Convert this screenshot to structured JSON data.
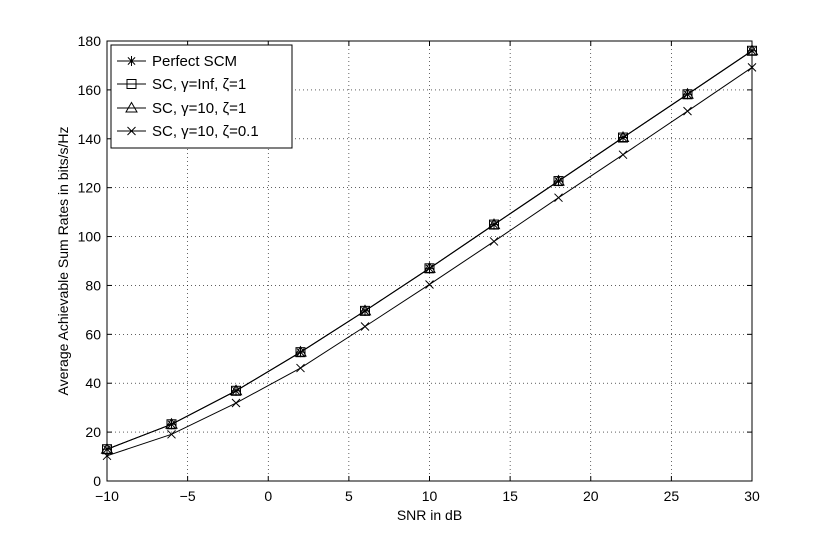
{
  "chart_data": {
    "type": "line",
    "title": "",
    "xlabel": "SNR in dB",
    "ylabel": "Average Achievable Sum Rates in bits/s/Hz",
    "xlim": [
      -10,
      30
    ],
    "ylim": [
      0,
      180
    ],
    "xticks": [
      -10,
      -5,
      0,
      5,
      10,
      15,
      20,
      25,
      30
    ],
    "xtick_labels": [
      "−10",
      "−5",
      "0",
      "5",
      "10",
      "15",
      "20",
      "25",
      "30"
    ],
    "yticks": [
      0,
      20,
      40,
      60,
      80,
      100,
      120,
      140,
      160,
      180
    ],
    "ytick_labels": [
      "0",
      "20",
      "40",
      "60",
      "80",
      "100",
      "120",
      "140",
      "160",
      "180"
    ],
    "grid": true,
    "legend_position": "top-left",
    "x": [
      -10,
      -6,
      -2,
      2,
      6,
      10,
      14,
      18,
      22,
      26,
      30
    ],
    "series": [
      {
        "name": "Perfect SCM",
        "marker": "asterisk",
        "values": [
          13,
          23.2,
          36.9,
          52.7,
          69.6,
          87.0,
          104.9,
          122.7,
          140.5,
          158.2,
          176.0
        ]
      },
      {
        "name": "SC, γ=Inf, ζ=1",
        "marker": "square",
        "values": [
          13,
          23.2,
          36.9,
          52.7,
          69.6,
          87.0,
          104.9,
          122.7,
          140.5,
          158.2,
          176.0
        ]
      },
      {
        "name": "SC, γ=10, ζ=1",
        "marker": "triangle",
        "values": [
          13,
          23.2,
          36.9,
          52.7,
          69.6,
          87.0,
          104.9,
          122.7,
          140.5,
          158.2,
          176.0
        ]
      },
      {
        "name": "SC, γ=10, ζ=0.1",
        "marker": "x",
        "values": [
          10.3,
          19.1,
          31.9,
          46.2,
          63.2,
          80.4,
          98.0,
          115.9,
          133.5,
          151.3,
          169.2
        ]
      }
    ],
    "line_color": "#000000"
  }
}
